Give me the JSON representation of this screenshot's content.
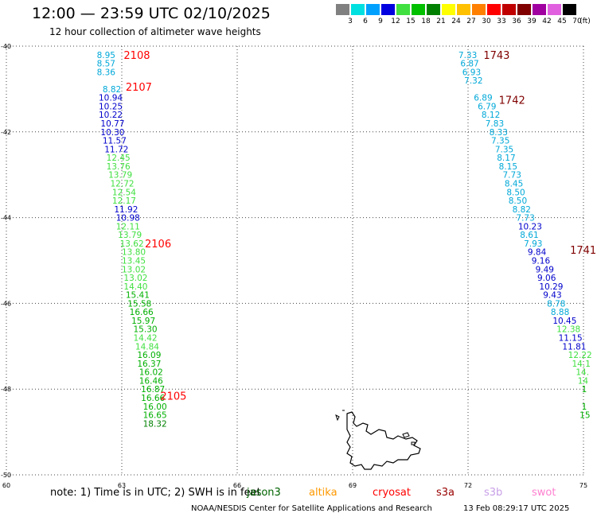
{
  "header": {
    "title": "12:00 — 23:59 UTC 02/10/2025",
    "subtitle": "12 hour collection of altimeter wave heights"
  },
  "legend": {
    "unit": "(ft)",
    "bins": [
      {
        "label": "3",
        "color": "#808080"
      },
      {
        "label": "6",
        "color": "#00e0e0"
      },
      {
        "label": "9",
        "color": "#00a0ff"
      },
      {
        "label": "12",
        "color": "#0000e0"
      },
      {
        "label": "15",
        "color": "#40e040"
      },
      {
        "label": "18",
        "color": "#00c000"
      },
      {
        "label": "21",
        "color": "#008000"
      },
      {
        "label": "24",
        "color": "#ffff00"
      },
      {
        "label": "27",
        "color": "#ffc000"
      },
      {
        "label": "30",
        "color": "#ff8000"
      },
      {
        "label": "33",
        "color": "#ff0000"
      },
      {
        "label": "36",
        "color": "#c00000"
      },
      {
        "label": "39",
        "color": "#800000"
      },
      {
        "label": "42",
        "color": "#a000a0"
      },
      {
        "label": "45",
        "color": "#e060e0"
      },
      {
        "label": "70",
        "color": "#000000"
      }
    ]
  },
  "map": {
    "lon_range": [
      60,
      75
    ],
    "lat_range": [
      -50,
      -40
    ],
    "lat_ticks": [
      "-40",
      "-42",
      "-44",
      "-46",
      "-48",
      "-50"
    ],
    "lon_ticks": [
      "60",
      "63",
      "66",
      "69",
      "72",
      "75"
    ],
    "colors": {
      "cyan": "#00a8d8",
      "blue": "#0000cc",
      "lightgreen": "#40e040",
      "green": "#00b000",
      "darkgreen": "#008000",
      "red": "#ff0000",
      "darkred": "#800000"
    },
    "track_labels": [
      {
        "text": "2108",
        "lon": 63.05,
        "lat": -40.2,
        "color": "red"
      },
      {
        "text": "2107",
        "lon": 63.1,
        "lat": -40.95,
        "color": "red"
      },
      {
        "text": "2106",
        "lon": 63.6,
        "lat": -44.6,
        "color": "red"
      },
      {
        "text": "2105",
        "lon": 64.0,
        "lat": -48.15,
        "color": "red"
      },
      {
        "text": "1743",
        "lon": 72.4,
        "lat": -40.2,
        "color": "darkred"
      },
      {
        "text": "1742",
        "lon": 72.8,
        "lat": -41.25,
        "color": "darkred"
      },
      {
        "text": "1741",
        "lon": 74.65,
        "lat": -44.75,
        "color": "darkred"
      }
    ],
    "tracks": [
      {
        "name": "west",
        "points": [
          [
            "8.95",
            62.35,
            -40.2,
            "cyan"
          ],
          [
            "8.57",
            62.35,
            -40.4,
            "cyan"
          ],
          [
            "8.36",
            62.35,
            -40.6,
            "cyan"
          ],
          [
            "8.82",
            62.5,
            -41.0,
            "cyan"
          ],
          [
            "10.94",
            62.4,
            -41.2,
            "blue"
          ],
          [
            "10.25",
            62.4,
            -41.4,
            "blue"
          ],
          [
            "10.22",
            62.4,
            -41.6,
            "blue"
          ],
          [
            "10.77",
            62.45,
            -41.8,
            "blue"
          ],
          [
            "10.30",
            62.45,
            -42.0,
            "blue"
          ],
          [
            "11.57",
            62.5,
            -42.2,
            "blue"
          ],
          [
            "11.72",
            62.55,
            -42.4,
            "blue"
          ],
          [
            "12.45",
            62.6,
            -42.6,
            "lightgreen"
          ],
          [
            "13.76",
            62.6,
            -42.8,
            "lightgreen"
          ],
          [
            "13.79",
            62.65,
            -43.0,
            "lightgreen"
          ],
          [
            "12.72",
            62.7,
            -43.2,
            "lightgreen"
          ],
          [
            "12.54",
            62.75,
            -43.4,
            "lightgreen"
          ],
          [
            "12.17",
            62.75,
            -43.6,
            "lightgreen"
          ],
          [
            "11.92",
            62.8,
            -43.8,
            "blue"
          ],
          [
            "10.98",
            62.85,
            -44.0,
            "blue"
          ],
          [
            "12.11",
            62.85,
            -44.2,
            "lightgreen"
          ],
          [
            "13.79",
            62.9,
            -44.4,
            "lightgreen"
          ],
          [
            "13.62",
            62.95,
            -44.6,
            "lightgreen"
          ],
          [
            "13.80",
            63.0,
            -44.8,
            "lightgreen"
          ],
          [
            "13.45",
            63.0,
            -45.0,
            "lightgreen"
          ],
          [
            "13.02",
            63.0,
            -45.2,
            "lightgreen"
          ],
          [
            "13.02",
            63.05,
            -45.4,
            "lightgreen"
          ],
          [
            "14.40",
            63.05,
            -45.6,
            "lightgreen"
          ],
          [
            "15.41",
            63.1,
            -45.8,
            "green"
          ],
          [
            "15.58",
            63.15,
            -46.0,
            "green"
          ],
          [
            "16.66",
            63.2,
            -46.2,
            "green"
          ],
          [
            "15.97",
            63.25,
            -46.4,
            "green"
          ],
          [
            "15.30",
            63.3,
            -46.6,
            "green"
          ],
          [
            "14.42",
            63.3,
            -46.8,
            "lightgreen"
          ],
          [
            "14.84",
            63.35,
            -47.0,
            "lightgreen"
          ],
          [
            "16.09",
            63.4,
            -47.2,
            "green"
          ],
          [
            "16.37",
            63.4,
            -47.4,
            "green"
          ],
          [
            "16.02",
            63.45,
            -47.6,
            "green"
          ],
          [
            "16.46",
            63.45,
            -47.8,
            "green"
          ],
          [
            "16.87",
            63.5,
            -48.0,
            "green"
          ],
          [
            "16.66",
            63.5,
            -48.2,
            "green"
          ],
          [
            "16.00",
            63.55,
            -48.4,
            "green"
          ],
          [
            "16.65",
            63.55,
            -48.6,
            "green"
          ],
          [
            "18.32",
            63.55,
            -48.8,
            "darkgreen"
          ]
        ]
      },
      {
        "name": "east",
        "points": [
          [
            "7.33",
            71.75,
            -40.2,
            "cyan"
          ],
          [
            "6.87",
            71.8,
            -40.4,
            "cyan"
          ],
          [
            "6.93",
            71.85,
            -40.6,
            "cyan"
          ],
          [
            "7.32",
            71.9,
            -40.8,
            "cyan"
          ],
          [
            "6.89",
            72.15,
            -41.2,
            "cyan"
          ],
          [
            "6.79",
            72.25,
            -41.4,
            "cyan"
          ],
          [
            "8.12",
            72.35,
            -41.6,
            "cyan"
          ],
          [
            "7.83",
            72.45,
            -41.8,
            "cyan"
          ],
          [
            "8.33",
            72.55,
            -42.0,
            "cyan"
          ],
          [
            "7.35",
            72.6,
            -42.2,
            "cyan"
          ],
          [
            "7.35",
            72.7,
            -42.4,
            "cyan"
          ],
          [
            "8.17",
            72.75,
            -42.6,
            "cyan"
          ],
          [
            "8.15",
            72.8,
            -42.8,
            "cyan"
          ],
          [
            "7.73",
            72.9,
            -43.0,
            "cyan"
          ],
          [
            "8.45",
            72.95,
            -43.2,
            "cyan"
          ],
          [
            "8.50",
            73.0,
            -43.4,
            "cyan"
          ],
          [
            "8.50",
            73.05,
            -43.6,
            "cyan"
          ],
          [
            "8.82",
            73.15,
            -43.8,
            "cyan"
          ],
          [
            "7.73",
            73.25,
            -44.0,
            "cyan"
          ],
          [
            "10.23",
            73.3,
            -44.2,
            "blue"
          ],
          [
            "8.61",
            73.35,
            -44.4,
            "cyan"
          ],
          [
            "7.93",
            73.45,
            -44.6,
            "cyan"
          ],
          [
            "9.84",
            73.55,
            -44.8,
            "blue"
          ],
          [
            "9.16",
            73.65,
            -45.0,
            "blue"
          ],
          [
            "9.49",
            73.75,
            -45.2,
            "blue"
          ],
          [
            "9.06",
            73.8,
            -45.4,
            "blue"
          ],
          [
            "10.29",
            73.85,
            -45.6,
            "blue"
          ],
          [
            "9.43",
            73.95,
            -45.8,
            "blue"
          ],
          [
            "8.78",
            74.05,
            -46.0,
            "cyan"
          ],
          [
            "8.88",
            74.15,
            -46.2,
            "cyan"
          ],
          [
            "10.45",
            74.2,
            -46.4,
            "blue"
          ],
          [
            "12.38",
            74.3,
            -46.6,
            "lightgreen"
          ],
          [
            "11.15",
            74.35,
            -46.8,
            "blue"
          ],
          [
            "11.81",
            74.45,
            -47.0,
            "blue"
          ],
          [
            "12.22",
            74.6,
            -47.2,
            "lightgreen"
          ],
          [
            "14.1",
            74.7,
            -47.4,
            "lightgreen"
          ],
          [
            "14.",
            74.8,
            -47.6,
            "lightgreen"
          ],
          [
            "14",
            74.85,
            -47.8,
            "lightgreen"
          ],
          [
            "1",
            74.95,
            -48.0,
            "green"
          ],
          [
            "1",
            74.95,
            -48.4,
            "green"
          ],
          [
            "15",
            74.9,
            -48.6,
            "green"
          ]
        ]
      }
    ]
  },
  "footer": {
    "note": "note:  1) Time is in UTC;  2) SWH is in feet",
    "satellites": [
      {
        "label": "jason3",
        "color": "#006400"
      },
      {
        "label": "altika",
        "color": "#ff9900"
      },
      {
        "label": "cryosat",
        "color": "#ff0000"
      },
      {
        "label": "s3a",
        "color": "#990000"
      },
      {
        "label": "s3b",
        "color": "#c8a0e8"
      },
      {
        "label": "swot",
        "color": "#ff80d0"
      }
    ],
    "credit": "NOAA/NESDIS Center for Satellite Applications and Research",
    "timestamp": "13 Feb 08:29:17 UTC 2025"
  }
}
